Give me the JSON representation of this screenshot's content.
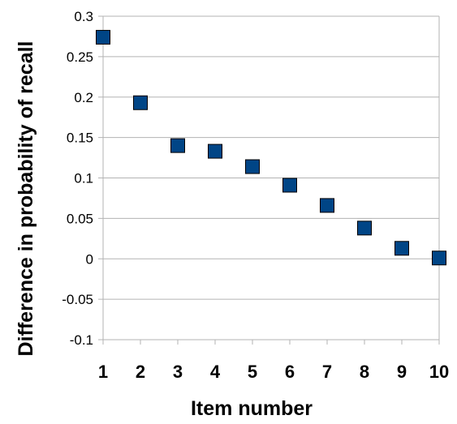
{
  "chart_data": {
    "type": "scatter",
    "title": "",
    "xlabel": "Item number",
    "ylabel": "Difference in probability of recall",
    "x": [
      1,
      2,
      3,
      4,
      5,
      6,
      7,
      8,
      9,
      10
    ],
    "y": [
      0.274,
      0.193,
      0.14,
      0.133,
      0.114,
      0.091,
      0.066,
      0.038,
      0.013,
      0.001
    ],
    "xlim": [
      1,
      10
    ],
    "ylim": [
      -0.1,
      0.3
    ],
    "x_ticks": [
      "1",
      "2",
      "3",
      "4",
      "5",
      "6",
      "7",
      "8",
      "9",
      "10"
    ],
    "y_ticks": [
      "-0.1",
      "-0.05",
      "0",
      "0.05",
      "0.1",
      "0.15",
      "0.2",
      "0.25",
      "0.3"
    ],
    "grid": "horizontal",
    "legend": "none",
    "marker_color": "#004586",
    "marker_shape": "square"
  }
}
